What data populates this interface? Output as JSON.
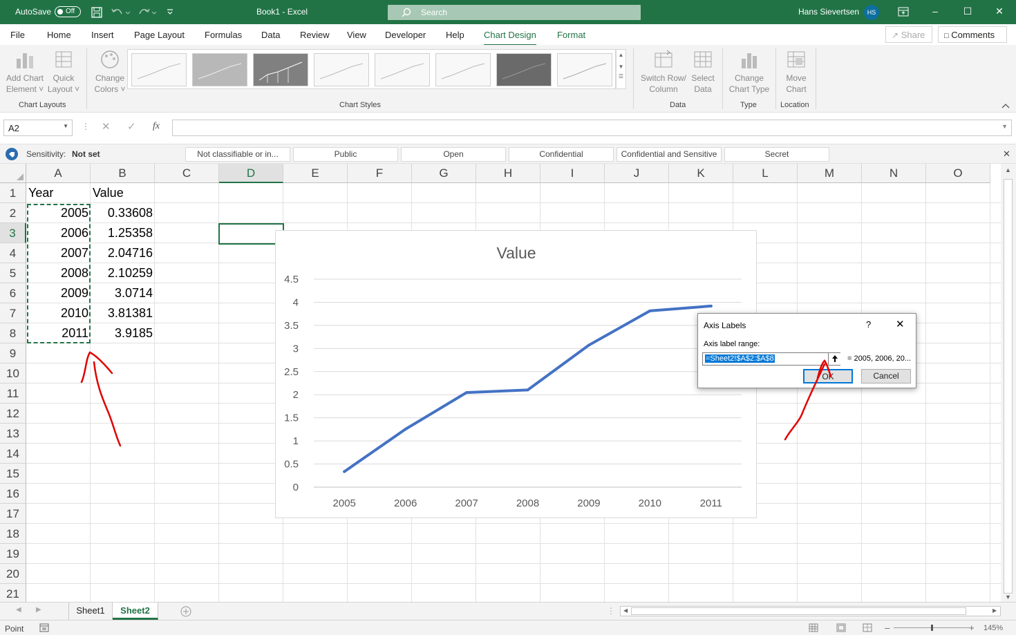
{
  "titlebar": {
    "autosave_label": "AutoSave",
    "autosave_state": "Off",
    "doc_title": "Book1  -  Excel",
    "search_placeholder": "Search",
    "user_name": "Hans Sievertsen",
    "user_initials": "HS"
  },
  "tabs": [
    {
      "label": "File"
    },
    {
      "label": "Home"
    },
    {
      "label": "Insert"
    },
    {
      "label": "Page Layout"
    },
    {
      "label": "Formulas"
    },
    {
      "label": "Data"
    },
    {
      "label": "Review"
    },
    {
      "label": "View"
    },
    {
      "label": "Developer"
    },
    {
      "label": "Help"
    },
    {
      "label": "Chart Design"
    },
    {
      "label": "Format"
    }
  ],
  "header_actions": {
    "share_label": "Share",
    "comments_label": "Comments"
  },
  "ribbon": {
    "add_chart_element": [
      "Add Chart",
      "Element ˅"
    ],
    "quick_layout": [
      "Quick",
      "Layout ˅"
    ],
    "change_colors": [
      "Change",
      "Colors ˅"
    ],
    "switch_row_column": [
      "Switch Row/",
      "Column"
    ],
    "select_data": [
      "Select",
      "Data"
    ],
    "change_chart_type": [
      "Change",
      "Chart Type"
    ],
    "move_chart": [
      "Move",
      "Chart"
    ],
    "groups": {
      "chart_layouts": "Chart Layouts",
      "chart_styles": "Chart Styles",
      "data": "Data",
      "type": "Type",
      "location": "Location"
    }
  },
  "formula_bar": {
    "name_box": "A2",
    "fx_label": "fx",
    "formula": ""
  },
  "sensitivity": {
    "label": "Sensitivity:",
    "value": "Not set",
    "options": [
      "Not classifiable or in...",
      "Public",
      "Open",
      "Confidential",
      "Confidential and Sensitive",
      "Secret"
    ]
  },
  "grid": {
    "columns": [
      "A",
      "B",
      "C",
      "D",
      "E",
      "F",
      "G",
      "H",
      "I",
      "J",
      "K",
      "L",
      "M",
      "N",
      "O"
    ],
    "rows": [
      "1",
      "2",
      "3",
      "4",
      "5",
      "6",
      "7",
      "8",
      "9",
      "10",
      "11",
      "12",
      "13",
      "14",
      "15",
      "16",
      "17",
      "18",
      "19",
      "20",
      "21"
    ],
    "header_row": [
      "Year",
      "Value"
    ],
    "years": [
      "2005",
      "2006",
      "2007",
      "2008",
      "2009",
      "2010",
      "2011"
    ],
    "values": [
      "0.33608",
      "1.25358",
      "2.04716",
      "2.10259",
      "3.0714",
      "3.81381",
      "3.9185"
    ]
  },
  "chart_data": {
    "type": "line",
    "title": "Value",
    "categories": [
      "2005",
      "2006",
      "2007",
      "2008",
      "2009",
      "2010",
      "2011"
    ],
    "series": [
      {
        "values": [
          0.33608,
          1.25358,
          2.04716,
          2.10259,
          3.0714,
          3.81381,
          3.9185
        ]
      }
    ],
    "yticks": [
      "0",
      "0.5",
      "1",
      "1.5",
      "2",
      "2.5",
      "3",
      "3.5",
      "4",
      "4.5"
    ],
    "ylim": [
      0,
      4.5
    ],
    "grid": true,
    "line_color": "#4472c4"
  },
  "dialog": {
    "title": "Axis Labels",
    "help": "?",
    "field_label": "Axis label range:",
    "field_value": "=Sheet2!$A$2:$A$8",
    "preview": "= 2005, 2006, 20...",
    "ok_label": "OK",
    "cancel_label": "Cancel"
  },
  "sheet_tabs": [
    {
      "label": "Sheet1"
    },
    {
      "label": "Sheet2"
    }
  ],
  "status": {
    "mode": "Point",
    "zoom": "145%"
  },
  "colors": {
    "excel_green": "#217346",
    "annotation_red": "#e00000"
  }
}
